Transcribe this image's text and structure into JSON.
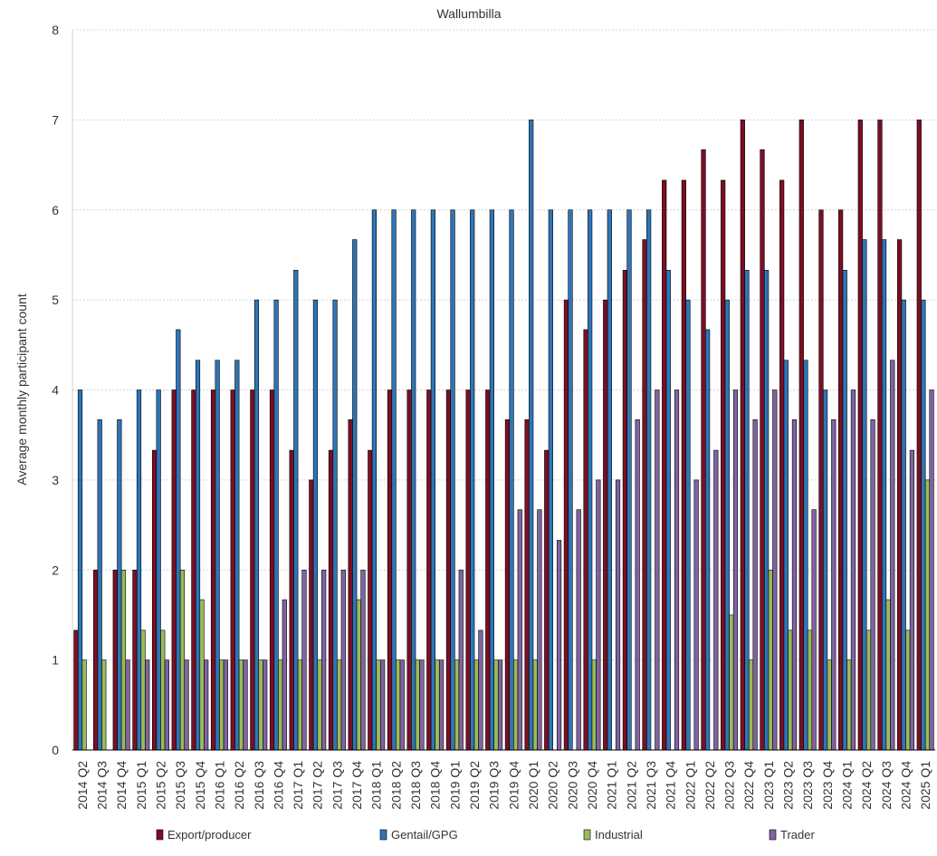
{
  "chart_data": {
    "type": "bar",
    "title": "Wallumbilla",
    "xlabel": "",
    "ylabel": "Average monthly participant count",
    "ylim": [
      0,
      8
    ],
    "yticks": [
      0,
      1,
      2,
      3,
      4,
      5,
      6,
      7,
      8
    ],
    "grid": true,
    "legend_position": "bottom",
    "categories": [
      "2014 Q2",
      "2014 Q3",
      "2014 Q4",
      "2015 Q1",
      "2015 Q2",
      "2015 Q3",
      "2015 Q4",
      "2016 Q1",
      "2016 Q2",
      "2016 Q3",
      "2016 Q4",
      "2017 Q1",
      "2017 Q2",
      "2017 Q3",
      "2017 Q4",
      "2018 Q1",
      "2018 Q2",
      "2018 Q3",
      "2018 Q4",
      "2019 Q1",
      "2019 Q2",
      "2019 Q3",
      "2019 Q4",
      "2020 Q1",
      "2020 Q2",
      "2020 Q3",
      "2020 Q4",
      "2021 Q1",
      "2021 Q2",
      "2021 Q3",
      "2021 Q4",
      "2022 Q1",
      "2022 Q2",
      "2022 Q3",
      "2022 Q4",
      "2023 Q1",
      "2023 Q2",
      "2023 Q3",
      "2023 Q4",
      "2024 Q1",
      "2024 Q2",
      "2024 Q3",
      "2024 Q4",
      "2025 Q1"
    ],
    "series": [
      {
        "name": "Export/producer",
        "color": "#7b0f24",
        "values": [
          1.33,
          2,
          2,
          2,
          3.33,
          4,
          4,
          4,
          4,
          4,
          4,
          3.33,
          3,
          3.33,
          3.67,
          3.33,
          4,
          4,
          4,
          4,
          4,
          4,
          3.67,
          3.67,
          3.33,
          5,
          4.67,
          5,
          5.33,
          5.67,
          6.33,
          6.33,
          6.67,
          6.33,
          7,
          6.67,
          6.33,
          7,
          6,
          6,
          7,
          7,
          5.67,
          7
        ]
      },
      {
        "name": "Gentail/GPG",
        "color": "#2e75b6",
        "values": [
          4,
          3.67,
          3.67,
          4,
          4,
          4.67,
          4.33,
          4.33,
          4.33,
          5,
          5,
          5.33,
          5,
          5,
          5.67,
          6,
          6,
          6,
          6,
          6,
          6,
          6,
          6,
          7,
          6,
          6,
          6,
          6,
          6,
          6,
          5.33,
          5,
          4.67,
          5,
          5.33,
          5.33,
          4.33,
          4.33,
          4,
          5.33,
          5.67,
          5.67,
          5,
          5
        ]
      },
      {
        "name": "Industrial",
        "color": "#9bbb59",
        "values": [
          1,
          1,
          2,
          1.33,
          1.33,
          2,
          1.67,
          1,
          1,
          1,
          1,
          1,
          1,
          1,
          1.67,
          1,
          1,
          1,
          1,
          1,
          1,
          1,
          1,
          1,
          0,
          0,
          1,
          0,
          0,
          0,
          0,
          0,
          0,
          1.5,
          1,
          2,
          1.33,
          1.33,
          1,
          1,
          1.33,
          1.67,
          1.33,
          3
        ]
      },
      {
        "name": "Trader",
        "color": "#8064a2",
        "values": [
          0,
          0,
          1,
          1,
          1,
          1,
          1,
          1,
          1,
          1,
          1.67,
          2,
          2,
          2,
          2,
          1,
          1,
          1,
          1,
          2,
          1.33,
          1,
          2.67,
          2.67,
          2.33,
          2.67,
          3,
          3,
          3.67,
          4,
          4,
          3,
          3.33,
          4,
          3.67,
          4,
          3.67,
          2.67,
          3.67,
          4,
          3.67,
          4.33,
          3.33,
          4
        ]
      }
    ]
  }
}
